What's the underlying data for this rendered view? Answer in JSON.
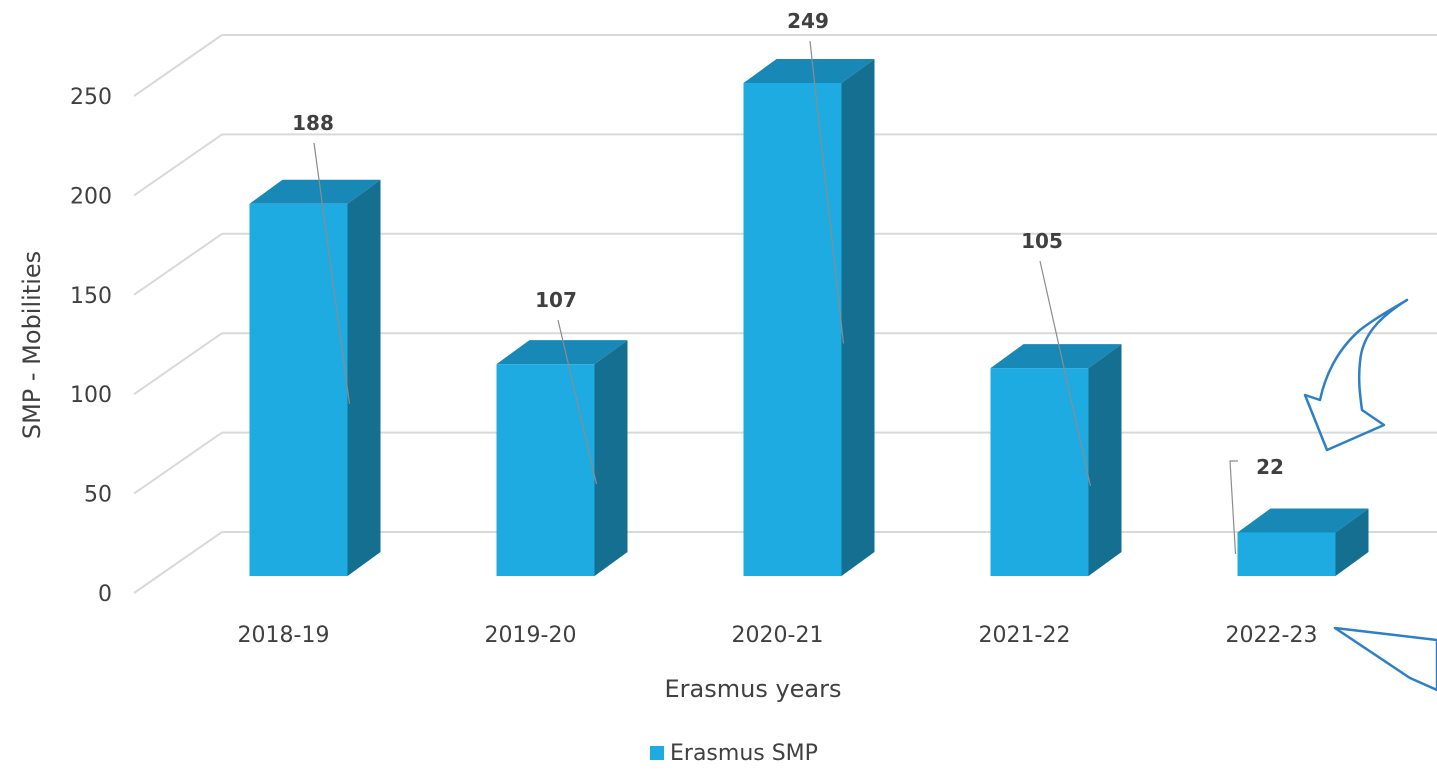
{
  "chart_data": {
    "type": "bar",
    "categories": [
      "2018-19",
      "2019-20",
      "2020-21",
      "2021-22",
      "2022-23"
    ],
    "series": [
      {
        "name": "Erasmus SMP",
        "values": [
          188,
          107,
          249,
          105,
          22
        ]
      }
    ],
    "xlabel": "Erasmus years",
    "ylabel": "SMP - Mobilities",
    "ylim": [
      0,
      250
    ],
    "yticks": [
      0,
      50,
      100,
      150,
      200,
      250
    ],
    "grid": true,
    "legend": "bottom",
    "style": "3d-column",
    "colors": {
      "front": "#1eabe2",
      "side": "#146f90",
      "top": "#1889b6",
      "grid": "#d9d9d9",
      "arrow": "#2f7fc4"
    }
  },
  "annotations": {
    "arrow_icon": "curved-arrow-icon",
    "arrow_icon_2": "arrow-pointer-icon"
  }
}
